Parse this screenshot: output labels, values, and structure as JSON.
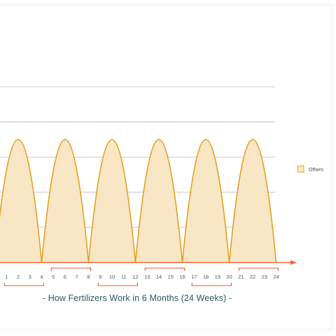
{
  "chart_data": {
    "type": "area",
    "title": "",
    "caption": "- How Fertilizers Work in 6 Months (24 Weeks) -",
    "xlabel": "",
    "ylabel": "",
    "x_ticks": [
      "1",
      "2",
      "3",
      "4",
      "5",
      "6",
      "7",
      "8",
      "9",
      "10",
      "11",
      "12",
      "13",
      "14",
      "15",
      "16",
      "17",
      "18",
      "19",
      "20",
      "21",
      "22",
      "23",
      "24"
    ],
    "groups": [
      {
        "weeks": [
          1,
          4
        ]
      },
      {
        "weeks": [
          5,
          8
        ]
      },
      {
        "weeks": [
          9,
          12
        ]
      },
      {
        "weeks": [
          13,
          16
        ]
      },
      {
        "weeks": [
          17,
          20
        ]
      },
      {
        "weeks": [
          21,
          24
        ]
      }
    ],
    "series": [
      {
        "name": "Others",
        "shape": "repeating-arch",
        "cycles": [
          {
            "start_week": 0,
            "end_week": 4,
            "peak": 3.5
          },
          {
            "start_week": 4,
            "end_week": 8,
            "peak": 3.5
          },
          {
            "start_week": 8,
            "end_week": 12,
            "peak": 3.5
          },
          {
            "start_week": 12,
            "end_week": 16,
            "peak": 3.5
          },
          {
            "start_week": 16,
            "end_week": 20,
            "peak": 3.5
          },
          {
            "start_week": 20,
            "end_week": 24,
            "peak": 3.5
          }
        ]
      }
    ],
    "xlim": [
      0,
      24
    ],
    "ylim": [
      0,
      5
    ],
    "y_gridlines": [
      1,
      2,
      3,
      4,
      5
    ],
    "grid": true,
    "legend": {
      "position": "right",
      "entries": [
        "Others"
      ]
    },
    "colors": {
      "fill": "#f8e6c4",
      "stroke": "#e3a21f",
      "axis": "#ef6a3f",
      "bracket": "#e05a3a",
      "grid": "#b9b9b9",
      "caption": "#2f5868"
    }
  }
}
